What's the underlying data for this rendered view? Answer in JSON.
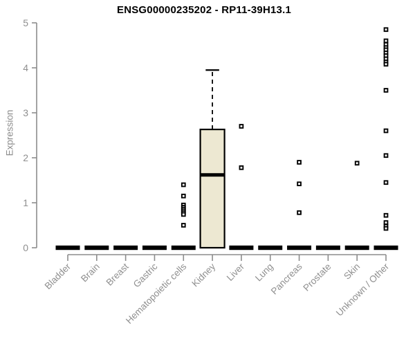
{
  "chart_data": {
    "type": "boxplot",
    "title": "ENSG00000235202 - RP11-39H13.1",
    "ylabel": "Expression",
    "ylim": [
      0,
      5
    ],
    "yticks": [
      0,
      1,
      2,
      3,
      4,
      5
    ],
    "grid": false,
    "legend": "none",
    "categories": [
      "Bladder",
      "Brain",
      "Breast",
      "Gastric",
      "Hematopoietic cells",
      "Kidney",
      "Liver",
      "Lung",
      "Pancreas",
      "Prostate",
      "Skin",
      "Unknown / Other"
    ],
    "boxes": [
      {
        "category": "Bladder",
        "min": 0,
        "q1": 0,
        "median": 0,
        "q3": 0,
        "max": 0,
        "outliers": []
      },
      {
        "category": "Brain",
        "min": 0,
        "q1": 0,
        "median": 0,
        "q3": 0,
        "max": 0,
        "outliers": []
      },
      {
        "category": "Breast",
        "min": 0,
        "q1": 0,
        "median": 0,
        "q3": 0,
        "max": 0,
        "outliers": []
      },
      {
        "category": "Gastric",
        "min": 0,
        "q1": 0,
        "median": 0,
        "q3": 0,
        "max": 0,
        "outliers": []
      },
      {
        "category": "Hematopoietic cells",
        "min": 0,
        "q1": 0,
        "median": 0,
        "q3": 0,
        "max": 0,
        "outliers": [
          1.4,
          1.15,
          0.95,
          0.9,
          0.86,
          0.82,
          0.78,
          0.74,
          0.5
        ]
      },
      {
        "category": "Kidney",
        "min": 0,
        "q1": 0,
        "median": 1.62,
        "q3": 2.63,
        "max": 3.95,
        "outliers": []
      },
      {
        "category": "Liver",
        "min": 0,
        "q1": 0,
        "median": 0,
        "q3": 0,
        "max": 0,
        "outliers": [
          2.7,
          1.78
        ]
      },
      {
        "category": "Lung",
        "min": 0,
        "q1": 0,
        "median": 0,
        "q3": 0,
        "max": 0,
        "outliers": []
      },
      {
        "category": "Pancreas",
        "min": 0,
        "q1": 0,
        "median": 0,
        "q3": 0,
        "max": 0,
        "outliers": [
          1.9,
          1.42,
          0.78
        ]
      },
      {
        "category": "Prostate",
        "min": 0,
        "q1": 0,
        "median": 0,
        "q3": 0,
        "max": 0,
        "outliers": []
      },
      {
        "category": "Skin",
        "min": 0,
        "q1": 0,
        "median": 0,
        "q3": 0,
        "max": 0,
        "outliers": [
          1.88
        ]
      },
      {
        "category": "Unknown / Other",
        "min": 0,
        "q1": 0,
        "median": 0,
        "q3": 0,
        "max": 0,
        "outliers": [
          4.85,
          4.6,
          4.52,
          4.45,
          4.4,
          4.33,
          4.27,
          4.2,
          4.13,
          4.08,
          3.5,
          2.6,
          2.05,
          1.45,
          0.72,
          0.56,
          0.48,
          0.43
        ]
      }
    ],
    "colors": {
      "box_fill": "#EDE8D2",
      "box_stroke": "#000000",
      "flat_bar": "#000000",
      "outlier_stroke": "#000000",
      "outlier_fill": "#ffffff",
      "axis": "#8C8C8C",
      "tick_label": "#8F8F8F",
      "title": "#000000"
    }
  }
}
